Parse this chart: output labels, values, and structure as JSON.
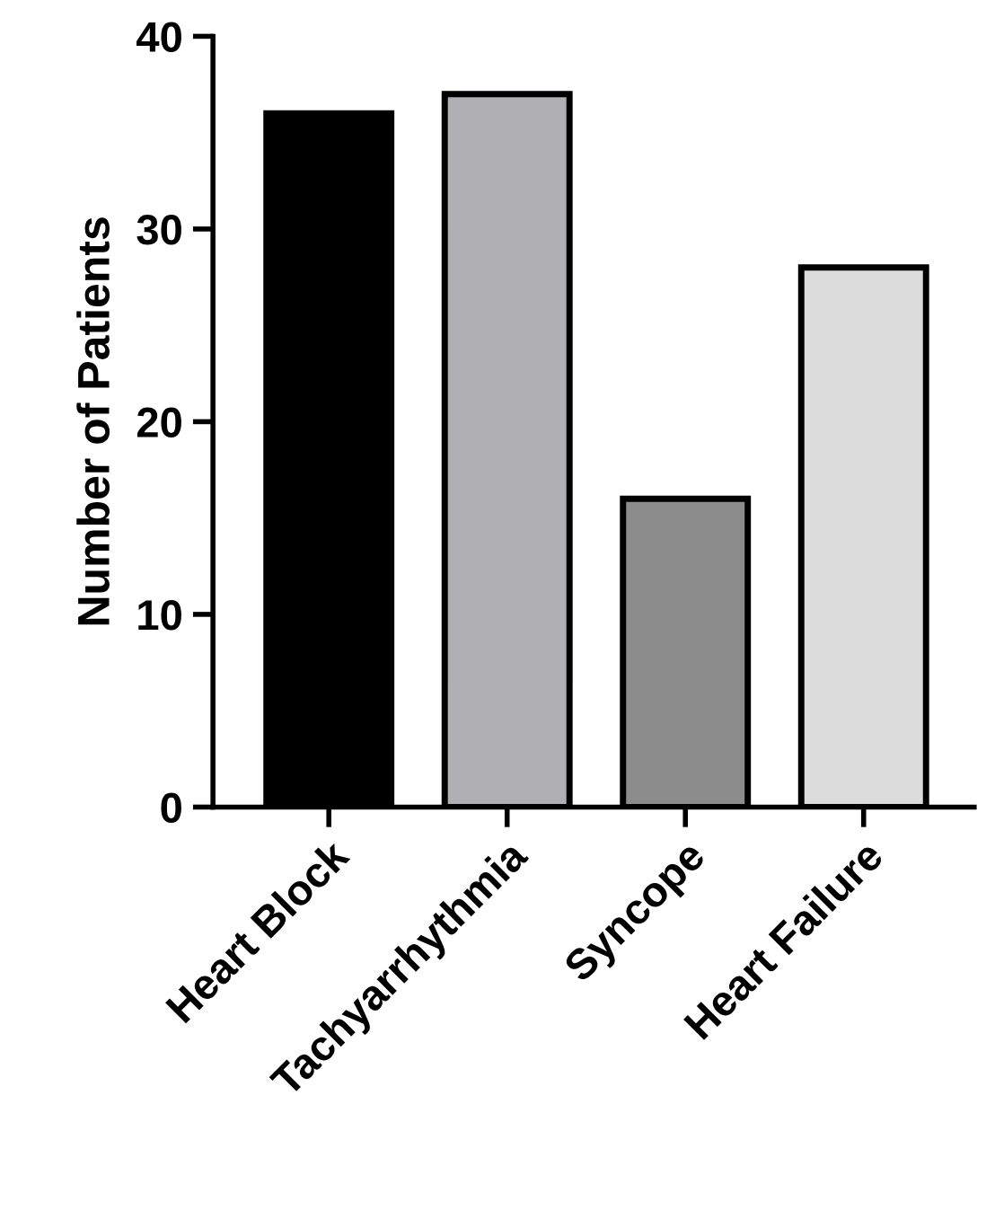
{
  "chart_data": {
    "type": "bar",
    "ylabel": "Number of Patients",
    "categories": [
      "Heart Block",
      "Tachyarrhythmia",
      "Syncope",
      "Heart Failure"
    ],
    "values": [
      36,
      37,
      16,
      28
    ],
    "colors": [
      "#000000",
      "#b0b0b4",
      "#8c8c8c",
      "#dcdcdc"
    ],
    "ylim": [
      0,
      40
    ],
    "yticks": [
      0,
      10,
      20,
      30,
      40
    ],
    "grid": false,
    "legend": false
  }
}
